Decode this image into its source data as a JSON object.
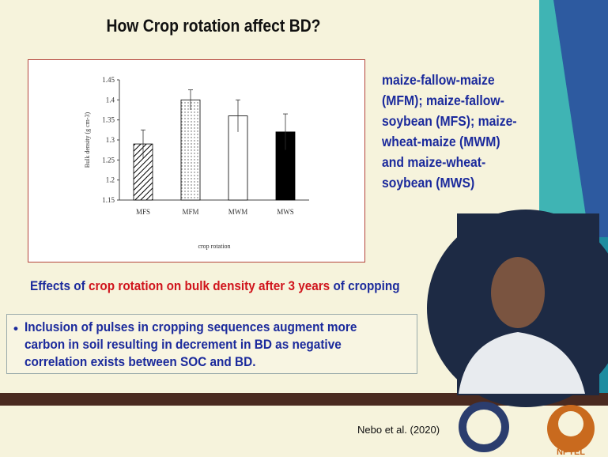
{
  "title": "How  Crop rotation affect  BD?",
  "side_text": [
    "maize-fallow-maize",
    "(MFM); maize-fallow-",
    "soybean (MFS); maize-",
    "wheat-maize (MWM)",
    "and maize-wheat-",
    "soybean (MWS)"
  ],
  "caption": {
    "parts": [
      "Effects of ",
      "crop rotation on bulk density after 3 years",
      " of cropping"
    ]
  },
  "bullet": {
    "marker": "•",
    "lines": [
      "Inclusion of pulses in cropping sequences augment more",
      "carbon in soil resulting in decrement in BD  as negative",
      "correlation exists between SOC and BD."
    ]
  },
  "citation": "Nebo et al. (2020)",
  "logo_text": "NPTEL",
  "chart_data": {
    "type": "bar",
    "categories": [
      "MFS",
      "MFM",
      "MWM",
      "MWS"
    ],
    "values": [
      1.29,
      1.4,
      1.36,
      1.32
    ],
    "errors": [
      0.035,
      0.025,
      0.04,
      0.045
    ],
    "patterns": [
      "hatch",
      "dots",
      "none",
      "solid"
    ],
    "color": "#000000",
    "y_label": "Bulk density (g cm-3)",
    "x_label": "crop rotation",
    "ylim": [
      1.15,
      1.45
    ],
    "yticks": [
      1.15,
      1.2,
      1.25,
      1.3,
      1.35,
      1.4,
      1.45
    ],
    "grid": false
  }
}
